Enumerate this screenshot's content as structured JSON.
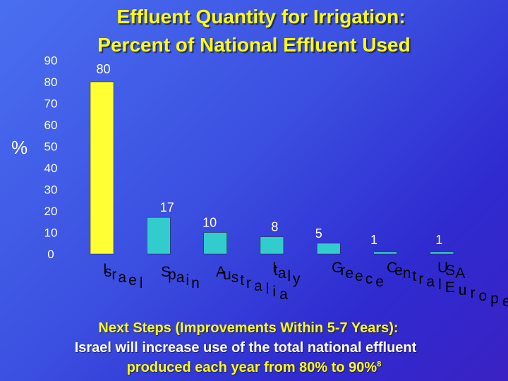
{
  "chart_data": {
    "type": "bar",
    "title": "Effluent Quantity for Irrigation:",
    "subtitle": "Percent of National Effluent Used",
    "ylabel": "%",
    "xlabel": "",
    "ylim": [
      0,
      90
    ],
    "yticks": [
      0,
      10,
      20,
      30,
      40,
      50,
      60,
      70,
      80,
      90
    ],
    "categories": [
      "Israel",
      "Spain",
      "Australia",
      "Italy",
      "Greece",
      "Central Europe",
      "USA"
    ],
    "values": [
      80,
      17,
      10,
      8,
      5,
      1,
      1
    ],
    "data_labels": [
      "80",
      "17",
      "10",
      "8",
      "5",
      "1",
      "1"
    ],
    "grid": false,
    "colors": {
      "highlight_bar": "#ffff33",
      "bar": "#33cccc",
      "background": "#3b4fe0",
      "title": "#ffff00"
    }
  },
  "footer": {
    "line1": "Next Steps (Improvements Within 5-7 Years):",
    "line2": "Israel will increase use of the total national effluent",
    "line3": "produced each year from 80% to 90%",
    "footnote_mark": "8"
  }
}
